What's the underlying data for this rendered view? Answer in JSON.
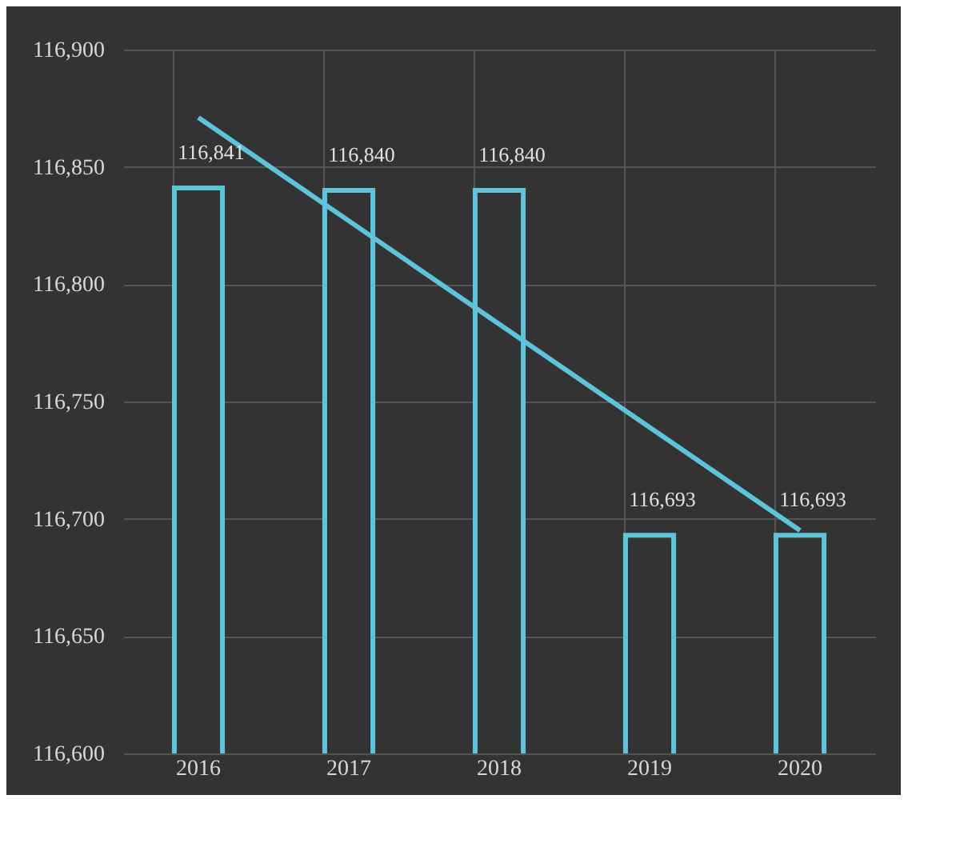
{
  "chart_data": {
    "type": "bar",
    "categories": [
      "2016",
      "2017",
      "2018",
      "2019",
      "2020"
    ],
    "series": [
      {
        "color": "#5ec4dc",
        "values": [
          116841,
          116840,
          116840,
          116693,
          116693
        ],
        "value_labels": [
          "116,841",
          "116,840",
          "116,840",
          "116,693",
          "116,693"
        ]
      },
      {
        "type": "line",
        "color": "#5ec4dc",
        "values": [
          116871,
          116827,
          116783,
          116739,
          116695
        ]
      }
    ],
    "ylim": [
      116600,
      116900
    ],
    "yticks": [
      {
        "value": 116600,
        "label": "116,600"
      },
      {
        "value": 116650,
        "label": "116,650"
      },
      {
        "value": 116700,
        "label": "116,700"
      },
      {
        "value": 116750,
        "label": "116,750"
      },
      {
        "value": 116800,
        "label": "116,800"
      },
      {
        "value": 116850,
        "label": "116,850"
      },
      {
        "value": 116900,
        "label": "116,900"
      }
    ],
    "grid": true
  }
}
